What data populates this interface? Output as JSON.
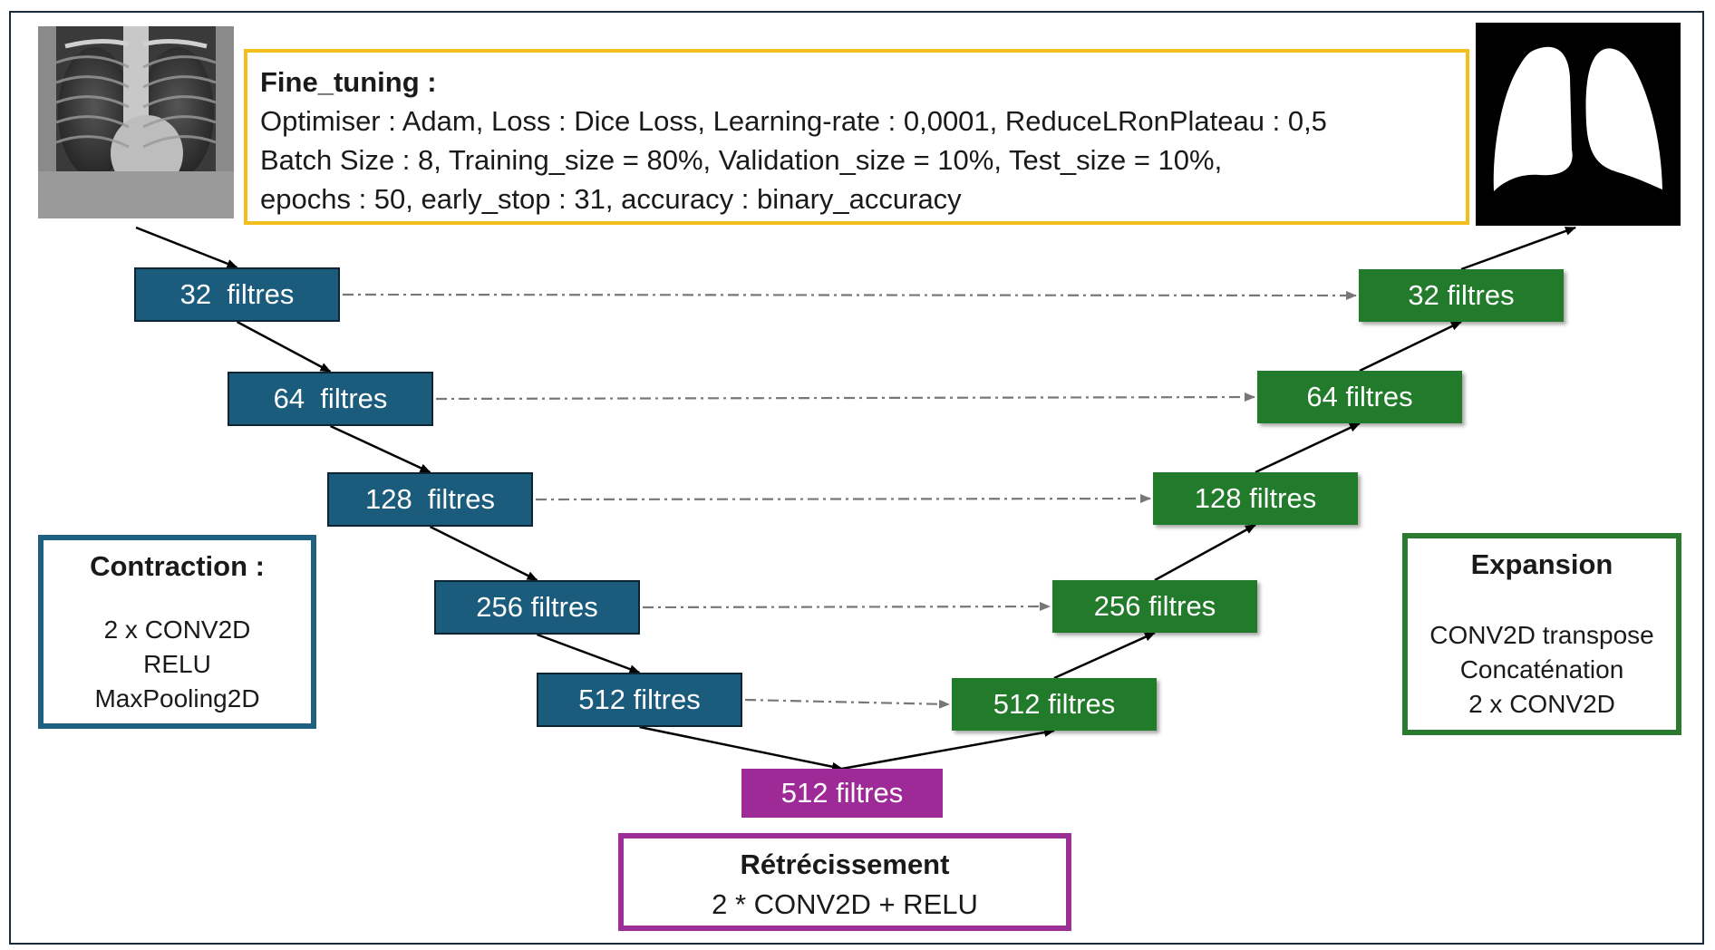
{
  "fine_tuning": {
    "title": "Fine_tuning :",
    "lines": [
      "Optimiser : Adam, Loss : Dice Loss, Learning-rate : 0,0001, ReduceLRonPlateau : 0,5",
      "Batch Size : 8, Training_size = 80%, Validation_size = 10%, Test_size = 10%,",
      "epochs : 50, early_stop : 31, accuracy : binary_accuracy"
    ]
  },
  "encoder": [
    "32  filtres",
    "64  filtres",
    "128  filtres",
    "256 filtres",
    "512 filtres"
  ],
  "decoder": [
    "32 filtres",
    "64 filtres",
    "128 filtres",
    "256 filtres",
    "512 filtres"
  ],
  "bottleneck": "512 filtres",
  "contraction": {
    "title": "Contraction :",
    "lines": [
      "2 x CONV2D",
      "RELU",
      "MaxPooling2D"
    ]
  },
  "expansion": {
    "title": "Expansion",
    "lines": [
      "CONV2D transpose",
      "Concaténation",
      "2 x CONV2D"
    ]
  },
  "retrecissement": {
    "title": "Rétrécissement",
    "line": "2 * CONV2D + RELU"
  },
  "colors": {
    "encoder": "#1b5b7c",
    "decoder": "#227a2b",
    "bottleneck": "#9e2a98",
    "fine_tuning_border": "#f4bf1c"
  },
  "images": {
    "input": "chest-xray-image",
    "output": "lung-mask-image"
  }
}
